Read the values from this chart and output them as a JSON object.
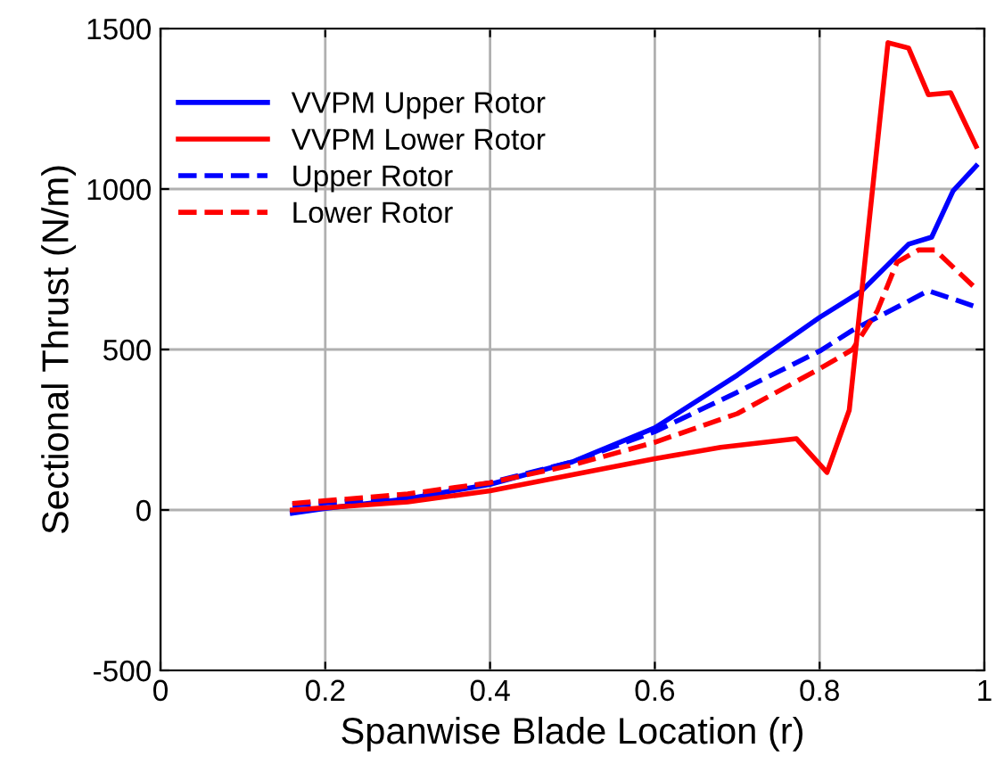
{
  "chart_data": {
    "type": "line",
    "xlabel": "Spanwise Blade Location (r)",
    "ylabel": "Sectional Thrust (N/m)",
    "xlim": [
      0,
      1
    ],
    "xticks": [
      0,
      0.2,
      0.4,
      0.6,
      0.8,
      1
    ],
    "ylim": [
      -500,
      1500
    ],
    "yticks": [
      -500,
      0,
      500,
      1000,
      1500
    ],
    "grid": true,
    "legend": "top left",
    "series": [
      {
        "name": "VVPM Upper Rotor",
        "color": "#0000ff",
        "line_style": "solid",
        "x": [
          0.16,
          0.2,
          0.3,
          0.4,
          0.5,
          0.6,
          0.7,
          0.8,
          0.85,
          0.908,
          0.936,
          0.962,
          0.99
        ],
        "values": [
          -10,
          5,
          35,
          80,
          150,
          256,
          420,
          600,
          680,
          828,
          850,
          994,
          1072
        ]
      },
      {
        "name": "VVPM Lower Rotor",
        "color": "#ff0000",
        "line_style": "solid",
        "x": [
          0.16,
          0.3,
          0.4,
          0.5,
          0.6,
          0.68,
          0.772,
          0.809,
          0.836,
          0.883,
          0.908,
          0.932,
          0.959,
          0.99
        ],
        "values": [
          0,
          25,
          60,
          110,
          160,
          195,
          222,
          117,
          311,
          1456,
          1439,
          1294,
          1300,
          1133
        ]
      },
      {
        "name": "Upper Rotor",
        "color": "#0000ff",
        "line_style": "dashed",
        "x": [
          0.16,
          0.3,
          0.4,
          0.5,
          0.6,
          0.7,
          0.8,
          0.84,
          0.9,
          0.932,
          0.99
        ],
        "values": [
          15,
          40,
          85,
          150,
          244,
          367,
          495,
          560,
          640,
          683,
          633
        ]
      },
      {
        "name": "Lower Rotor",
        "color": "#ff0000",
        "line_style": "dashed",
        "x": [
          0.16,
          0.3,
          0.4,
          0.5,
          0.6,
          0.7,
          0.8,
          0.84,
          0.87,
          0.894,
          0.92,
          0.94,
          0.99
        ],
        "values": [
          20,
          50,
          85,
          140,
          211,
          300,
          440,
          500,
          620,
          772,
          810,
          810,
          689
        ]
      }
    ]
  }
}
